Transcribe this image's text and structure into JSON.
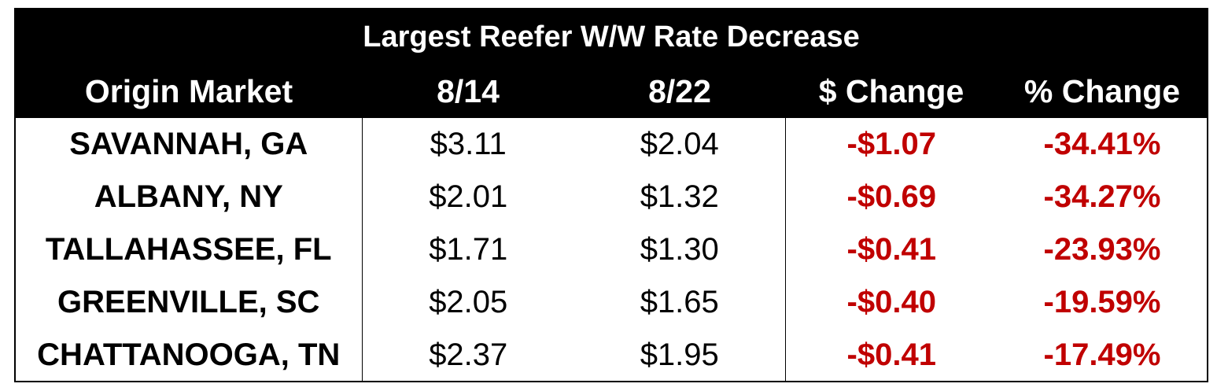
{
  "chart_data": {
    "type": "table",
    "title": "Largest Reefer W/W Rate Decrease",
    "columns": [
      "Origin Market",
      "8/14",
      "8/22",
      "$ Change",
      "% Change"
    ],
    "rows": [
      {
        "market": "SAVANNAH, GA",
        "d814": "$3.11",
        "d822": "$2.04",
        "dollar_change": "-$1.07",
        "pct_change": "-34.41%"
      },
      {
        "market": "ALBANY, NY",
        "d814": "$2.01",
        "d822": "$1.32",
        "dollar_change": "-$0.69",
        "pct_change": "-34.27%"
      },
      {
        "market": "TALLAHASSEE, FL",
        "d814": "$1.71",
        "d822": "$1.30",
        "dollar_change": "-$0.41",
        "pct_change": "-23.93%"
      },
      {
        "market": "GREENVILLE, SC",
        "d814": "$2.05",
        "d822": "$1.65",
        "dollar_change": "-$0.40",
        "pct_change": "-19.59%"
      },
      {
        "market": "CHATTANOOGA, TN",
        "d814": "$2.37",
        "d822": "$1.95",
        "dollar_change": "-$0.41",
        "pct_change": "-17.49%"
      }
    ]
  },
  "colors": {
    "header_bg": "#000000",
    "header_text": "#ffffff",
    "negative_text": "#c00000",
    "body_text": "#000000"
  }
}
